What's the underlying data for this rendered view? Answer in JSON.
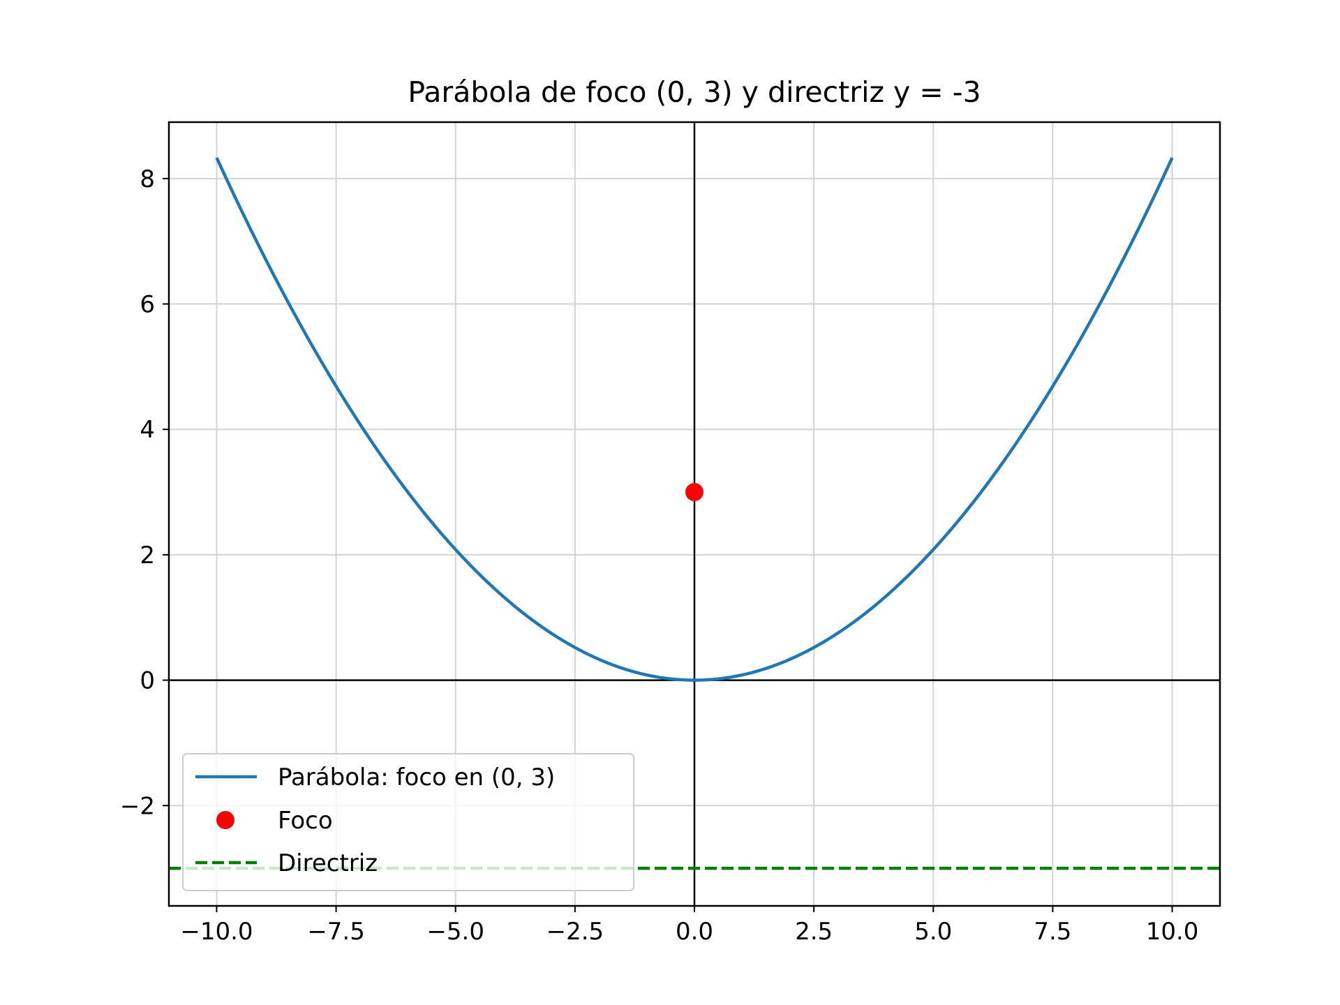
{
  "chart_data": {
    "type": "line",
    "title": "Parábola de foco (0, 3) y directriz y = -3",
    "xlabel": "",
    "ylabel": "",
    "xlim": [
      -11.0,
      11.0
    ],
    "ylim": [
      -3.6,
      8.9
    ],
    "grid": true,
    "x_ticks": [
      -10.0,
      -7.5,
      -5.0,
      -2.5,
      0.0,
      2.5,
      5.0,
      7.5,
      10.0
    ],
    "x_tick_labels": [
      "−10.0",
      "−7.5",
      "−5.0",
      "−2.5",
      "0.0",
      "2.5",
      "5.0",
      "7.5",
      "10.0"
    ],
    "y_ticks": [
      -2,
      0,
      2,
      4,
      6,
      8
    ],
    "y_tick_labels": [
      "−2",
      "0",
      "2",
      "4",
      "6",
      "8"
    ],
    "axis_lines": {
      "x": 0,
      "y": 0,
      "color": "#000000"
    },
    "legend_placement": "lower-left",
    "series": [
      {
        "name": "Parábola: foco en (0, 3)",
        "kind": "line",
        "color": "#1f77b4",
        "x": [
          -10,
          -9,
          -8,
          -7,
          -6,
          -5,
          -4,
          -3,
          -2,
          -1,
          0,
          1,
          2,
          3,
          4,
          5,
          6,
          7,
          8,
          9,
          10
        ],
        "y": [
          8.333,
          6.75,
          5.333,
          4.083,
          3.0,
          2.083,
          1.333,
          0.75,
          0.333,
          0.083,
          0.0,
          0.083,
          0.333,
          0.75,
          1.333,
          2.083,
          3.0,
          4.083,
          5.333,
          6.75,
          8.333
        ]
      },
      {
        "name": "Foco",
        "kind": "point",
        "color": "#ff0000",
        "x": [
          0
        ],
        "y": [
          3
        ]
      },
      {
        "name": "Directriz",
        "kind": "hline",
        "color": "#008000",
        "y": -3
      }
    ]
  }
}
